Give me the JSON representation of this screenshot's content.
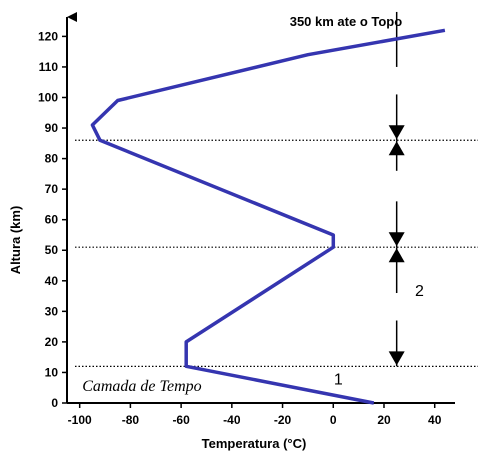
{
  "chart_data": {
    "type": "line",
    "title": "",
    "xlabel": "Temperatura (°C)",
    "ylabel": "Altura (km)",
    "xlim": [
      -105,
      48
    ],
    "ylim": [
      0,
      127
    ],
    "xticks": [
      -100,
      -80,
      -60,
      -40,
      -20,
      0,
      20,
      40
    ],
    "yticks": [
      0,
      10,
      20,
      30,
      40,
      50,
      60,
      70,
      80,
      90,
      100,
      110,
      120
    ],
    "grid": false,
    "series": [
      {
        "color": "#3535b0",
        "points": [
          [
            16,
            0
          ],
          [
            -58,
            12
          ],
          [
            -58,
            20
          ],
          [
            0,
            51
          ],
          [
            0,
            55
          ],
          [
            -92,
            86
          ],
          [
            -95,
            91
          ],
          [
            -85,
            99
          ],
          [
            -10,
            114
          ],
          [
            44,
            122
          ]
        ]
      }
    ],
    "boundaries": [
      12,
      51,
      86
    ],
    "top_label": "350 km ate o Topo",
    "layer_labels": [
      {
        "text": "1",
        "x": 2,
        "y": 6
      },
      {
        "text": "2",
        "x": 34,
        "y": 35
      }
    ],
    "layer_name": "Camada de Tempo"
  }
}
